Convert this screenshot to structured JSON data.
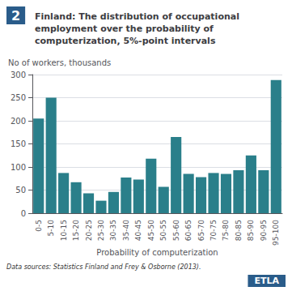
{
  "chart_data": {
    "type": "bar",
    "title": "Finland: The distribution of occupational\nemployment over the probability of\ncomputerization, 5%-point intervals",
    "ylabel": "No of workers, thousands",
    "xlabel": "Probability of computerization",
    "annotations": [
      "2",
      "Data sources: Statistics Finland and Frey & Osborne (2013).",
      "ETLA"
    ],
    "categories": [
      "0-5",
      "5-10",
      "10-15",
      "15-20",
      "20-25",
      "25-30",
      "30-35",
      "35-40",
      "40-45",
      "45-50",
      "50-55",
      "55-60",
      "60-65",
      "65-70",
      "70-75",
      "75-80",
      "80-85",
      "85-90",
      "90-95",
      "95-100"
    ],
    "values": [
      205,
      250,
      87,
      67,
      43,
      27,
      46,
      77,
      73,
      118,
      57,
      165,
      85,
      78,
      87,
      85,
      93,
      125,
      93,
      288
    ],
    "color": "#2a7f8a",
    "ylim": [
      0,
      300
    ],
    "yticks": [
      0,
      50,
      100,
      150,
      200,
      250,
      300
    ],
    "grid": true
  }
}
